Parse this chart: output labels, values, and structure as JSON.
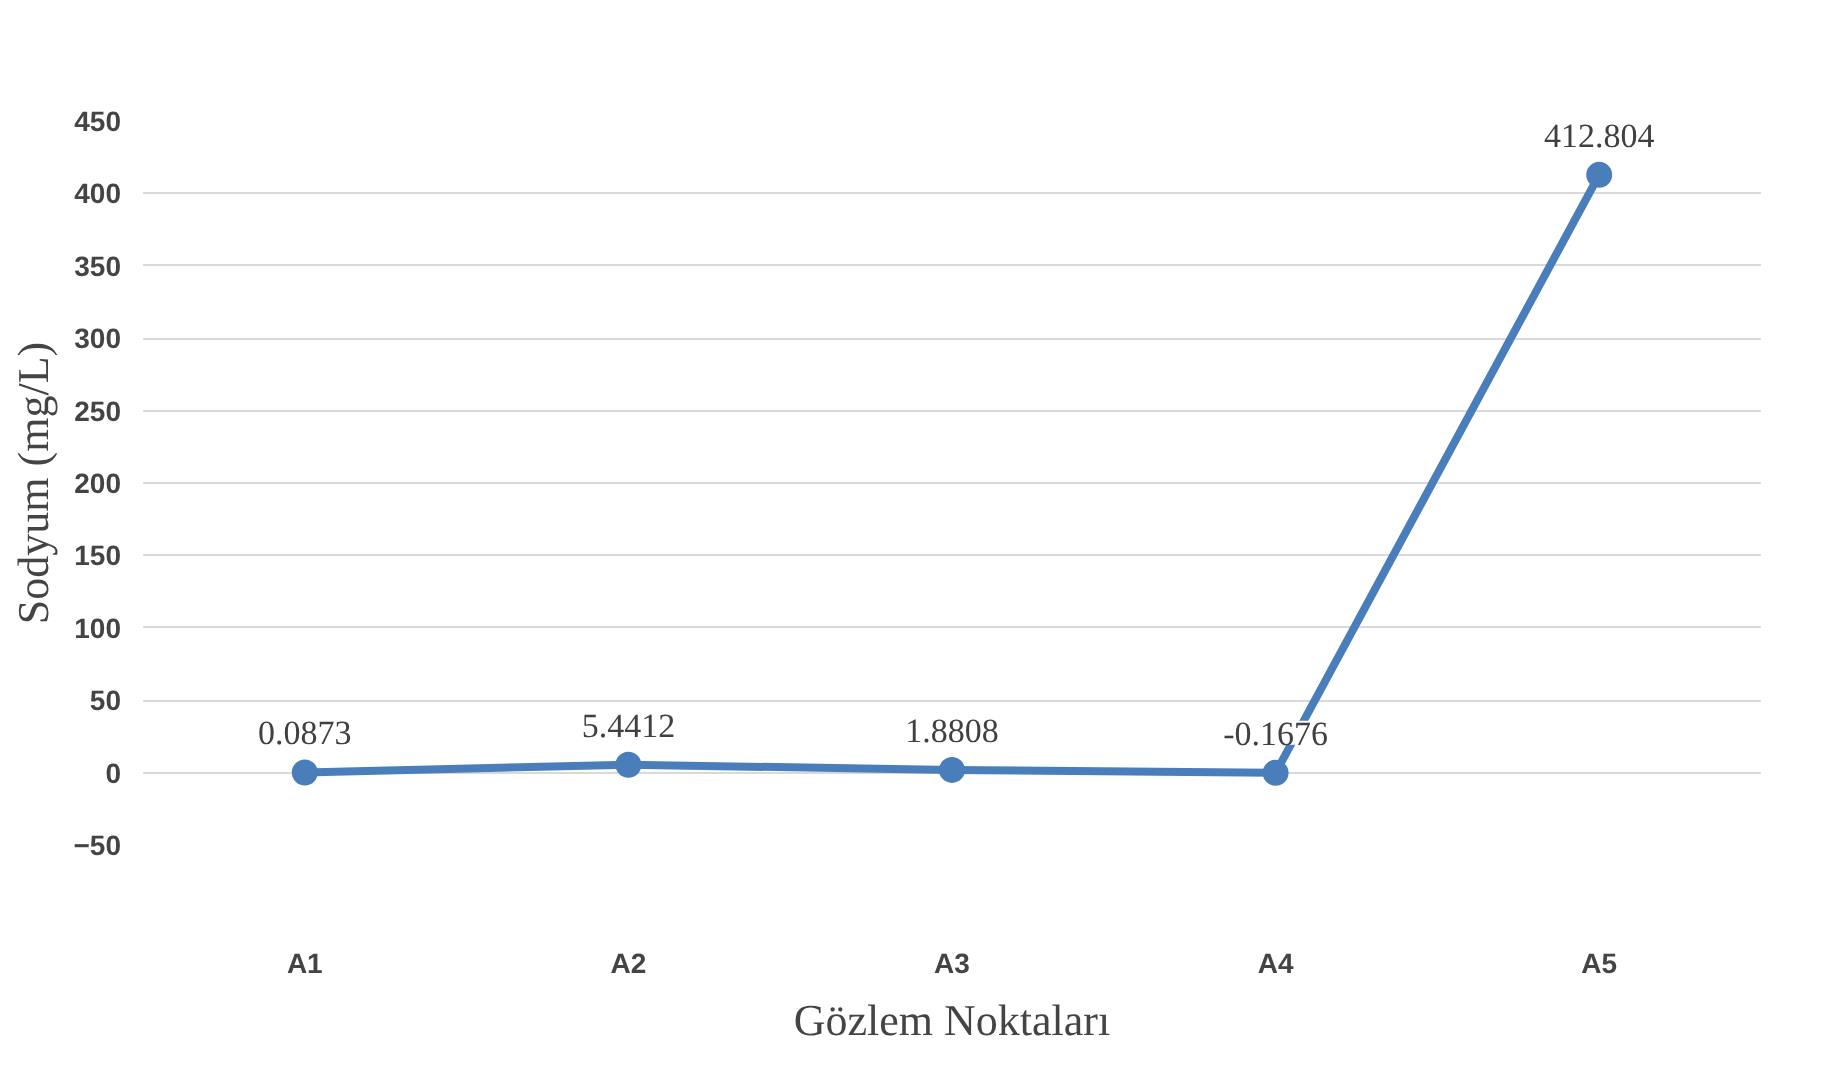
{
  "chart_data": {
    "type": "line",
    "xlabel": "Gözlem Noktaları",
    "ylabel": "Sodyum (mg/L)",
    "categories": [
      "A1",
      "A2",
      "A3",
      "A4",
      "A5"
    ],
    "series": [
      {
        "color": "#4a7ebb",
        "values": [
          0.0873,
          5.4412,
          1.8808,
          -0.1676,
          412.804
        ]
      }
    ],
    "value_labels": [
      "0.0873",
      "5.4412",
      "1.8808",
      "-0.1676",
      "412.804"
    ],
    "ylim": [
      -50,
      450
    ],
    "yticks": [
      -50,
      0,
      50,
      100,
      150,
      200,
      250,
      300,
      350,
      400,
      450
    ],
    "grid": "y",
    "marker": "circle",
    "line_style": "solid"
  }
}
